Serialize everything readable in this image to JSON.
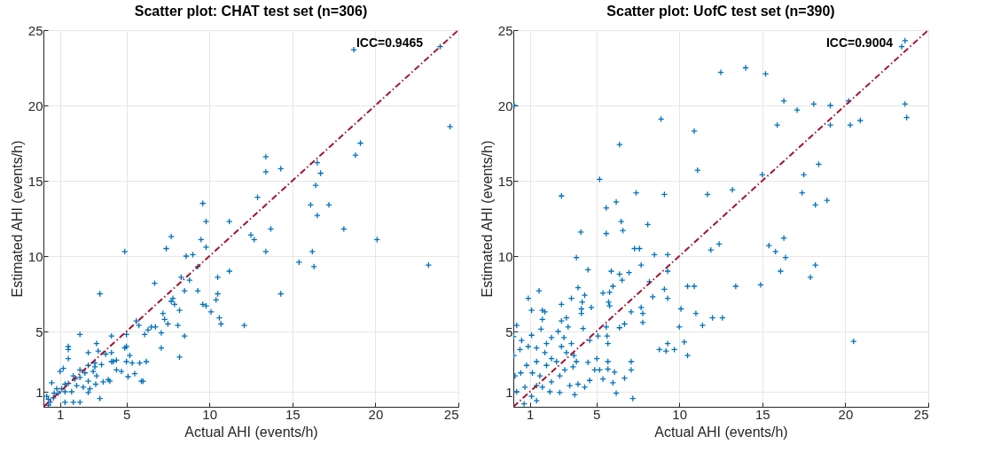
{
  "chart_data": [
    {
      "type": "scatter",
      "title": "Scatter plot: CHAT test set (n=306)",
      "xlabel": "Actual AHI (events/h)",
      "ylabel": "Estimated AHI (events/h)",
      "xlim": [
        0,
        25
      ],
      "ylim": [
        0,
        25
      ],
      "xticks": [
        1,
        5,
        10,
        15,
        20,
        25
      ],
      "yticks": [
        1,
        5,
        10,
        15,
        20,
        25
      ],
      "grid": true,
      "marker": "cross",
      "annotations": [
        "ICC=0.9465"
      ],
      "series": [
        {
          "type": "scatter",
          "color": "#0072bd",
          "x": [
            18.7,
            23.9,
            24.5,
            19.1,
            18.8,
            13.4,
            13.4,
            14.3,
            16.5,
            16.7,
            16.4,
            12.9,
            16.1,
            17.2,
            16.5,
            9.6,
            9.8,
            11.2,
            13.7,
            18.1,
            12.5,
            12.7,
            20.1,
            7.7,
            7.4,
            9.5,
            9.8,
            4.9,
            13.4,
            16.2,
            15.4,
            16.3,
            23.2,
            8.6,
            9.0,
            9.3,
            11.2,
            10.5,
            8.3,
            8.8,
            6.7,
            8.5,
            9.3,
            10.5,
            14.3,
            3.4,
            7.8,
            7.7,
            7.9,
            9.6,
            9.8,
            10.4,
            10.1,
            8.2,
            7.2,
            7.3,
            7.5,
            10.6,
            10.7,
            12.1,
            5.6,
            5.75,
            6.5,
            6.75,
            6.3,
            6.1,
            7.1,
            8.1,
            8.5,
            5.0,
            4.1,
            2.2,
            7.1,
            8.2,
            5.0,
            4.9,
            5.2,
            5.0,
            5.35,
            5.8,
            6.2,
            5.5,
            5.1,
            5.9,
            6.0,
            1.5,
            1.5,
            1.5,
            3.2,
            2.7,
            3.3,
            3.75,
            4.1,
            4.2,
            4.1,
            4.4,
            4.4,
            4.7,
            3.5,
            3.1,
            2.7,
            2.2,
            3.0,
            3.2,
            3.6,
            3.9,
            3.4,
            2.7,
            2.7,
            2.2,
            2.0,
            1.9,
            1.5,
            1.3,
            1.3,
            1.0,
            1.2,
            2.2,
            1.8,
            0.8,
            0.5,
            0.65,
            0.3,
            0.3,
            0.2,
            0.4,
            0.6,
            0.9,
            1.1,
            1.3,
            1.7,
            1.8,
            2.4,
            2.8,
            3.15,
            4.0,
            3.1,
            2.5
          ],
          "values": [
            23.7,
            23.9,
            18.6,
            17.5,
            16.7,
            16.6,
            15.6,
            15.8,
            16.2,
            15.5,
            14.7,
            13.9,
            13.4,
            13.4,
            12.7,
            13.5,
            12.3,
            12.3,
            11.8,
            11.8,
            11.4,
            11.1,
            11.1,
            11.3,
            10.5,
            11.1,
            10.6,
            10.3,
            10.3,
            10.3,
            9.6,
            9.3,
            9.4,
            10.0,
            10.1,
            9.3,
            9.0,
            8.6,
            8.6,
            8.4,
            8.2,
            7.7,
            7.7,
            7.5,
            7.5,
            7.5,
            7.2,
            7.0,
            6.8,
            6.8,
            6.7,
            7.1,
            6.3,
            6.4,
            6.2,
            5.8,
            5.5,
            5.9,
            5.5,
            5.4,
            5.7,
            5.4,
            5.3,
            5.3,
            5.1,
            4.8,
            4.9,
            5.4,
            4.7,
            4.8,
            4.7,
            4.8,
            3.9,
            3.3,
            4.0,
            3.9,
            3.4,
            3.0,
            2.9,
            2.9,
            3.0,
            2.2,
            2.0,
            1.7,
            1.7,
            4.0,
            3.8,
            3.2,
            4.2,
            3.6,
            3.7,
            3.5,
            3.6,
            3.0,
            3.0,
            3.1,
            2.45,
            2.35,
            2.8,
            2.9,
            2.75,
            2.45,
            2.35,
            2.05,
            1.65,
            1.8,
            0.55,
            0.95,
            1.7,
            1.95,
            1.4,
            1.85,
            1.55,
            1.0,
            0.3,
            2.35,
            2.55,
            0.3,
            0.3,
            1.2,
            1.6,
            0.9,
            0.5,
            0.1,
            0.7,
            0.3,
            0.6,
            0.9,
            1.2,
            1.5,
            1.0,
            2.05,
            1.3,
            1.2,
            1.5,
            1.7,
            2.65,
            2.25
          ]
        },
        {
          "type": "line",
          "color": "#a2142f",
          "line_style": "dashed",
          "marker": "none",
          "x": [
            0,
            25
          ],
          "values": [
            0,
            25
          ]
        }
      ]
    },
    {
      "type": "scatter",
      "title": "Scatter plot: UofC test set (n=390)",
      "xlabel": "Actual AHI (events/h)",
      "ylabel": "Estimated AHI (events/h)",
      "xlim": [
        0,
        25
      ],
      "ylim": [
        0,
        25
      ],
      "xticks": [
        1,
        5,
        10,
        15,
        20,
        25
      ],
      "yticks": [
        1,
        5,
        10,
        15,
        20,
        25
      ],
      "grid": true,
      "marker": "cross",
      "annotations": [
        "ICC=0.9004"
      ],
      "series": [
        {
          "type": "scatter",
          "color": "#0072bd",
          "x": [
            23.6,
            23.4,
            12.5,
            14.0,
            15.2,
            0.05,
            16.3,
            18.1,
            19.1,
            20.2,
            17.1,
            23.6,
            23.7,
            8.9,
            15.9,
            19.1,
            20.3,
            20.9,
            10.9,
            6.4,
            11.1,
            15.0,
            17.5,
            18.4,
            5.2,
            2.9,
            7.4,
            9.1,
            11.7,
            13.2,
            17.4,
            18.9,
            18.2,
            5.6,
            6.2,
            6.5,
            6.6,
            8.1,
            4.07,
            5.6,
            16.3,
            15.4,
            15.8,
            16.4,
            12.4,
            11.9,
            7.3,
            7.6,
            8.5,
            9.3,
            3.8,
            7.7,
            18.2,
            16.1,
            17.9,
            4.5,
            5.9,
            6.4,
            6.55,
            6.97,
            9.3,
            8.2,
            6.0,
            5.8,
            5.4,
            3.9,
            4.3,
            9.1,
            9.3,
            8.4,
            10.5,
            10.9,
            13.4,
            14.9,
            3.5,
            4.15,
            5.74,
            5.8,
            4.7,
            4.1,
            4.1,
            7.7,
            7.8,
            7.8,
            7.1,
            10.1,
            11.0,
            12.0,
            12.6,
            11.4,
            10.0,
            10.3,
            10.5,
            8.8,
            9.3,
            9.2,
            9.7,
            20.5,
            5.1,
            5.65,
            5.6,
            5.7,
            6.7,
            6.4,
            4.2,
            4.6,
            5.03,
            5.2,
            4.9,
            5.7,
            5.7,
            6.1,
            7.1,
            7.1,
            7.2,
            6.2,
            6.7,
            6.0,
            5.4,
            4.6,
            4.5,
            4.3,
            3.9,
            3.7,
            3.4,
            3.1,
            2.8,
            2.8,
            2.3,
            2.2,
            1.75,
            1.4,
            1.4,
            1.1,
            0.7,
            0.65,
            0.2,
            0.1,
            0.03,
            0.02,
            0.2,
            0.9,
            1.1,
            1.55,
            1.75,
            1.9,
            1.75,
            1.67,
            1.1,
            0.5,
            0.9,
            0.4,
            1.4,
            2.0,
            2.3,
            2.7,
            2.9,
            2.9,
            3.2,
            3.3,
            3.05,
            2.9,
            3.2,
            3.65,
            3.8,
            2.6,
            1.9,
            1.4,
            0.8,
            0.45,
            1.15,
            1.6,
            2.0,
            3.5,
            3.6,
            2.3
          ],
          "values": [
            24.3,
            23.9,
            22.2,
            22.5,
            22.1,
            20.0,
            20.3,
            20.1,
            20.0,
            20.3,
            19.7,
            20.1,
            19.2,
            19.1,
            18.7,
            18.7,
            18.7,
            19.0,
            18.3,
            17.4,
            15.7,
            15.4,
            15.4,
            16.1,
            15.1,
            14.0,
            14.2,
            14.1,
            14.1,
            14.4,
            14.2,
            13.7,
            13.4,
            13.2,
            13.6,
            12.3,
            11.7,
            12.1,
            11.6,
            11.5,
            11.2,
            10.7,
            10.3,
            9.9,
            10.8,
            10.4,
            10.5,
            10.5,
            10.1,
            10.1,
            9.9,
            9.4,
            9.4,
            9.0,
            8.6,
            9.1,
            9.0,
            8.8,
            8.4,
            8.9,
            9.0,
            8.3,
            8.0,
            7.6,
            7.55,
            7.9,
            7.4,
            7.8,
            7.2,
            7.3,
            8.0,
            8.0,
            8.0,
            8.1,
            7.2,
            6.95,
            6.95,
            6.7,
            6.6,
            6.5,
            6.2,
            6.6,
            6.2,
            5.6,
            6.3,
            6.5,
            6.2,
            5.9,
            5.9,
            5.4,
            5.3,
            4.3,
            3.4,
            3.8,
            4.2,
            3.7,
            3.8,
            4.35,
            4.7,
            4.7,
            5.3,
            4.2,
            5.5,
            5.25,
            5.2,
            4.4,
            3.2,
            2.45,
            2.45,
            3.0,
            2.5,
            2.3,
            3.0,
            2.45,
            0.55,
            0.9,
            1.9,
            1.6,
            1.85,
            1.75,
            2.95,
            1.3,
            1.5,
            0.8,
            1.4,
            2.45,
            2.05,
            0.95,
            1.65,
            1.0,
            1.3,
            1.4,
            0.4,
            0.7,
            1.3,
            0.2,
            1.0,
            2.05,
            3.4,
            4.65,
            5.4,
            7.2,
            6.4,
            7.7,
            6.4,
            6.3,
            5.8,
            5.15,
            4.75,
            4.4,
            4.0,
            3.8,
            3.9,
            4.2,
            4.6,
            5.0,
            5.7,
            6.8,
            5.9,
            5.3,
            4.6,
            4.0,
            3.6,
            3.4,
            3.0,
            3.0,
            3.6,
            3.0,
            2.75,
            2.25,
            2.25,
            2.05,
            2.75,
            4.2,
            2.65,
            3.2
          ]
        },
        {
          "type": "line",
          "color": "#a2142f",
          "line_style": "dashed",
          "marker": "none",
          "x": [
            0,
            25
          ],
          "values": [
            0,
            25
          ]
        }
      ]
    }
  ]
}
